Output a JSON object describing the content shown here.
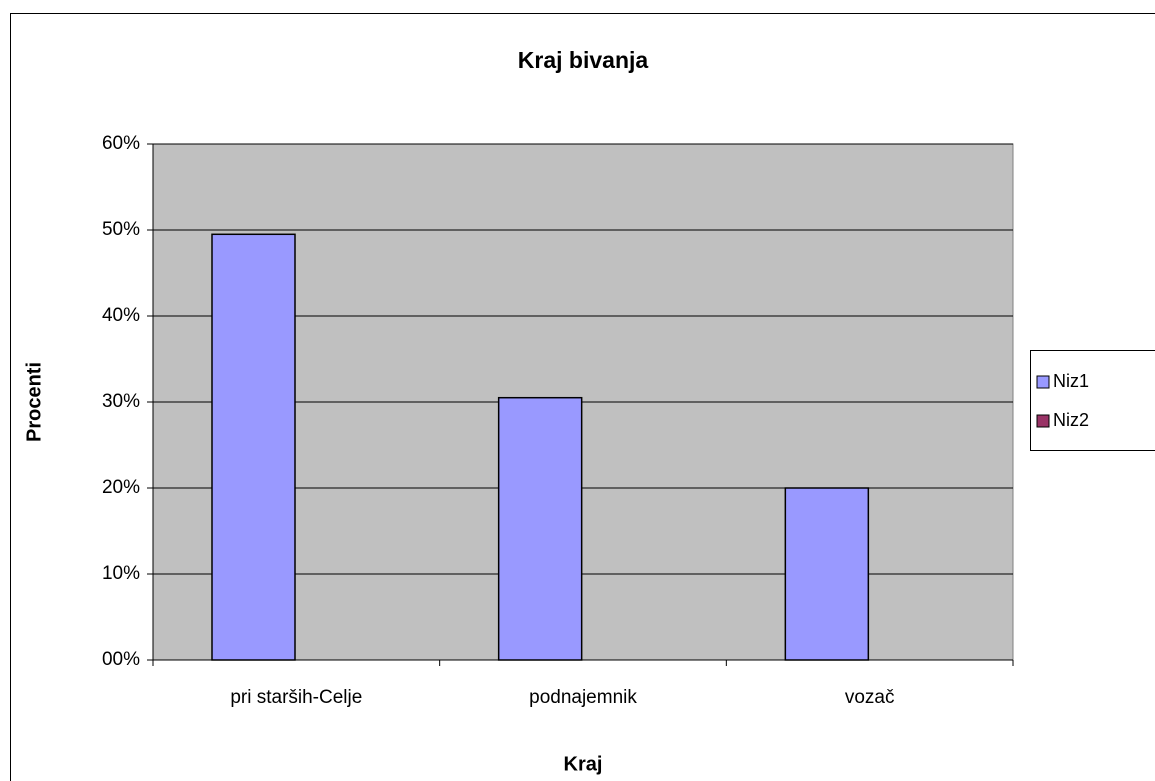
{
  "chart_data": {
    "type": "bar",
    "title": "Kraj bivanja",
    "x_label": "Kraj",
    "y_label": "Procenti",
    "categories": [
      "pri starših-Celje",
      "podnajemnik",
      "vozač"
    ],
    "series": [
      {
        "name": "Niz1",
        "color": "#9999ff",
        "values": [
          49.5,
          30.5,
          20
        ]
      },
      {
        "name": "Niz2",
        "color": "#993366",
        "values": [
          null,
          null,
          null
        ]
      }
    ],
    "ylim": [
      0,
      60
    ],
    "yticks": [
      {
        "value": 0,
        "label": "00%"
      },
      {
        "value": 10,
        "label": "10%"
      },
      {
        "value": 20,
        "label": "20%"
      },
      {
        "value": 30,
        "label": "30%"
      },
      {
        "value": 40,
        "label": "40%"
      },
      {
        "value": 50,
        "label": "50%"
      },
      {
        "value": 60,
        "label": "60%"
      }
    ],
    "grid": true,
    "legend": "right"
  }
}
